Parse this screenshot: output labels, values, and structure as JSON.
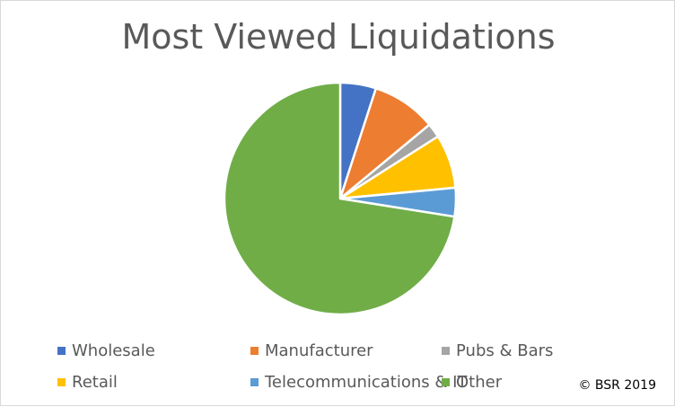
{
  "chart_data": {
    "type": "pie",
    "title": "Most Viewed Liquidations",
    "series": [
      {
        "name": "Wholesale",
        "value": 5,
        "color": "#4472c4"
      },
      {
        "name": "Manufacturer",
        "value": 9,
        "color": "#ed7d31"
      },
      {
        "name": "Pubs & Bars",
        "value": 2,
        "color": "#a5a5a5"
      },
      {
        "name": "Retail",
        "value": 7.5,
        "color": "#ffc000"
      },
      {
        "name": "Telecommunications & IT",
        "value": 4,
        "color": "#5b9bd5"
      },
      {
        "name": "Other",
        "value": 72.5,
        "color": "#70ad47"
      }
    ],
    "legend_position": "bottom"
  },
  "footer": {
    "copyright": "© BSR 2019"
  }
}
